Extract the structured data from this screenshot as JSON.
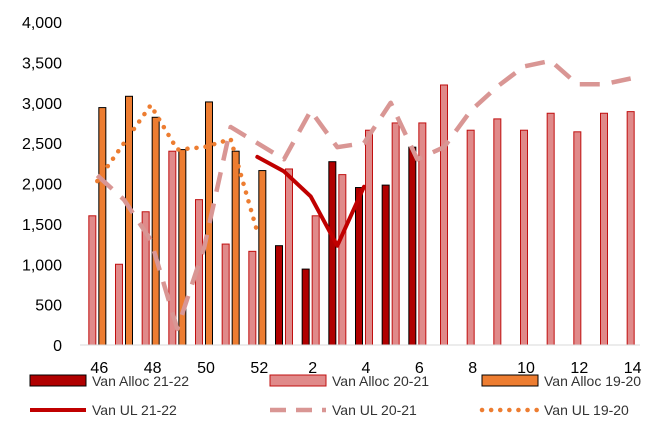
{
  "chart_data": {
    "type": "bar",
    "x": [
      46,
      47,
      48,
      49,
      50,
      51,
      52,
      1,
      2,
      3,
      4,
      5,
      6,
      7,
      8,
      9,
      10,
      11,
      12,
      13,
      14
    ],
    "x_tick_labels": [
      "46",
      "48",
      "50",
      "52",
      "2",
      "4",
      "6",
      "8",
      "10",
      "12",
      "14"
    ],
    "ylim": [
      0,
      4000
    ],
    "y_ticks": [
      0,
      500,
      1000,
      1500,
      2000,
      2500,
      3000,
      3500,
      4000
    ],
    "y_tick_labels": [
      "0",
      "500",
      "1,000",
      "1,500",
      "2,000",
      "2,500",
      "3,000",
      "3,500",
      "4,000"
    ],
    "grid": false,
    "legend_position": "bottom",
    "title": "",
    "xlabel": "",
    "ylabel": "",
    "series": [
      {
        "name": "Van Alloc 21-22",
        "kind": "bar",
        "color": "#b00000",
        "stroke": "#000000",
        "values": [
          null,
          null,
          null,
          null,
          null,
          null,
          null,
          1230,
          940,
          2270,
          1950,
          1980,
          2450,
          null,
          null,
          null,
          null,
          null,
          null,
          null,
          null
        ]
      },
      {
        "name": "Van Alloc 20-21",
        "kind": "bar",
        "color": "#e08a8a",
        "stroke": "#c01010",
        "values": [
          1600,
          1000,
          1650,
          2400,
          1800,
          1250,
          1160,
          2180,
          1600,
          2110,
          2660,
          2750,
          2750,
          3220,
          2660,
          2800,
          2660,
          2870,
          2640,
          2870,
          2890
        ]
      },
      {
        "name": "Van Alloc 19-20",
        "kind": "bar",
        "color": "#ed7d31",
        "stroke": "#000000",
        "values": [
          2940,
          3080,
          2820,
          2420,
          3010,
          2400,
          2160,
          null,
          null,
          null,
          null,
          null,
          null,
          null,
          null,
          null,
          null,
          null,
          null,
          null,
          null
        ]
      },
      {
        "name": "Van UL 21-22",
        "kind": "line",
        "style": "solid",
        "color": "#c00000",
        "values": [
          null,
          null,
          null,
          null,
          null,
          null,
          2330,
          2150,
          1840,
          1230,
          1960,
          null,
          null,
          null,
          null,
          null,
          null,
          null,
          null,
          null,
          null
        ]
      },
      {
        "name": "Van UL 20-21",
        "kind": "line",
        "style": "dashed",
        "color": "#d99694",
        "values": [
          2100,
          1800,
          1300,
          200,
          1200,
          2700,
          2500,
          2300,
          2900,
          2450,
          2500,
          3000,
          2300,
          2450,
          2900,
          3200,
          3450,
          3520,
          3230,
          3230,
          3300
        ]
      },
      {
        "name": "Van UL 19-20",
        "kind": "line",
        "style": "dotted",
        "color": "#ed7d31",
        "values": [
          2030,
          2500,
          2970,
          2420,
          2450,
          2550,
          1400,
          null,
          null,
          null,
          null,
          null,
          null,
          null,
          null,
          null,
          null,
          null,
          null,
          null,
          null
        ]
      }
    ]
  }
}
